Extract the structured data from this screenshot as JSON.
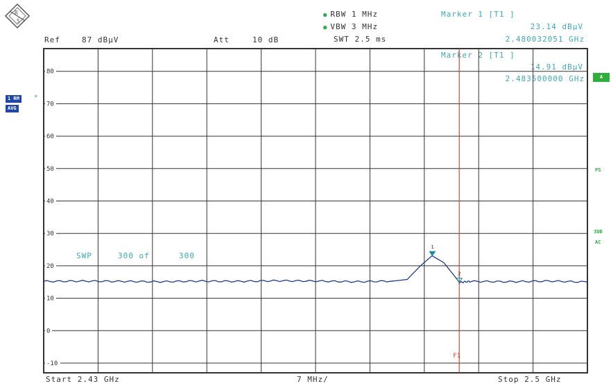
{
  "logo": {
    "text_top": "R",
    "text_bottom": "S"
  },
  "header": {
    "ref_label": "Ref",
    "ref_value": "87 dBµV",
    "att_label": "Att",
    "att_value": "10 dB",
    "rbw": "RBW 1 MHz",
    "vbw": "VBW 3 MHz",
    "swt": "SWT 2.5 ms"
  },
  "markers": {
    "m1_title": "Marker 1 [T1 ]",
    "m1_level": "23.14 dBµV",
    "m1_freq": "2.480032051 GHz",
    "m2_title": "Marker 2 [T1 ]",
    "m2_level": "14.91 dBµV",
    "m2_freq": "2.483500000 GHz"
  },
  "side": {
    "trace_label": "1 RM",
    "trace_star": "*",
    "avg_label": "AVG",
    "badge_a": "A",
    "tag_ps": "PS",
    "tag_3db": "3DB",
    "tag_ac": "AC"
  },
  "sweep": {
    "swp_label": "SWP",
    "swp_count": "300 of",
    "swp_total": "300"
  },
  "footer": {
    "start": "Start  2.43 GHz",
    "span": "7 MHz/",
    "stop": "Stop  2.5 GHz"
  },
  "limit_line_label": "F1",
  "marker_tags": [
    "1",
    "2"
  ],
  "colors": {
    "grid": "#333333",
    "trace": "#1c3c8c",
    "marker_line": "#d0442f",
    "marker_text": "#3fa8b8",
    "badge_blue": "#2046a8",
    "badge_green": "#2fae3c"
  },
  "chart_data": {
    "type": "line",
    "title": "",
    "xlabel": "",
    "ylabel": "",
    "x_unit": "GHz",
    "y_unit": "dBµV",
    "xlim": [
      2.43,
      2.5
    ],
    "ylim": [
      -13,
      87
    ],
    "y_ticks": [
      80,
      70,
      60,
      50,
      40,
      30,
      20,
      10,
      0,
      -10
    ],
    "y_tick_labels": [
      "80",
      "70",
      "60",
      "50",
      "40",
      "30",
      "20",
      "10",
      "0",
      "-10"
    ],
    "grid": true,
    "limit_line_x": 2.4835,
    "series": [
      {
        "name": "",
        "x": [
          2.43,
          2.435,
          2.44,
          2.445,
          2.45,
          2.455,
          2.46,
          2.465,
          2.47,
          2.475,
          2.4768,
          2.4785,
          2.48,
          2.4815,
          2.483,
          2.4835,
          2.485,
          2.49,
          2.495,
          2.5
        ],
        "y": [
          15.2,
          15.3,
          15.2,
          15.1,
          15.3,
          15.2,
          15.4,
          15.3,
          15.1,
          15.3,
          15.8,
          20.0,
          23.1,
          21.0,
          16.5,
          14.9,
          15.2,
          15.1,
          15.3,
          15.0
        ]
      }
    ],
    "markers": [
      {
        "label": "1",
        "x": 2.480032051,
        "y": 23.14
      },
      {
        "label": "2",
        "x": 2.4835,
        "y": 14.91
      }
    ]
  }
}
